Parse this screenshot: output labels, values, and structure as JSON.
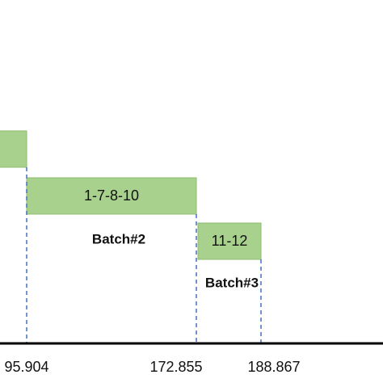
{
  "tasks": [
    {
      "label": "1-7-8-10",
      "batch": "Batch#2"
    },
    {
      "label": "11-12",
      "batch": "Batch#3"
    }
  ],
  "axis": {
    "ticks": [
      "95.904",
      "172.855",
      "188.867"
    ]
  }
}
